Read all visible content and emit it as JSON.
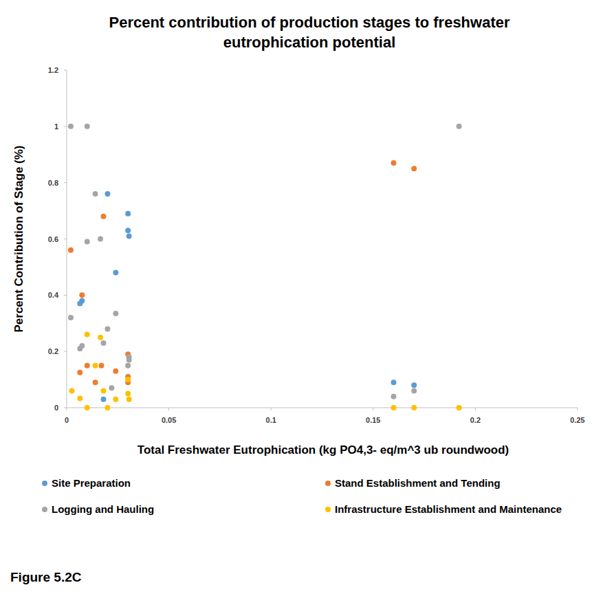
{
  "chart_data": {
    "type": "scatter",
    "title": "Percent contribution of production stages to freshwater eutrophication potential",
    "x_label": "Total Freshwater Eutrophication  (kg PO4,3- eq/m^3 ub roundwood)",
    "y_label": "Percent Contribution  of Stage (%)",
    "annotation": "Figure 5.2C",
    "xlim": [
      0,
      0.25
    ],
    "xticks": [
      0,
      0.05,
      0.1,
      0.15,
      0.2,
      0.25
    ],
    "ylim": [
      0,
      1.2
    ],
    "yticks": [
      0,
      0.2,
      0.4,
      0.6,
      0.8,
      1,
      1.2
    ],
    "grid": false,
    "legend": "bottom",
    "marker": "circle",
    "series": [
      {
        "name": "Site Preparation",
        "color": "#5b9bd5",
        "x": [
          0.02,
          0.03,
          0.03,
          0.0305,
          0.024,
          0.0065,
          0.0075,
          0.018,
          0.16,
          0.17
        ],
        "values": [
          0.76,
          0.69,
          0.63,
          0.61,
          0.48,
          0.37,
          0.38,
          0.03,
          0.09,
          0.08
        ]
      },
      {
        "name": "Stand Establishment and Tending",
        "color": "#ed7d31",
        "x": [
          0.16,
          0.17,
          0.018,
          0.002,
          0.0075,
          0.0065,
          0.01,
          0.017,
          0.014,
          0.024,
          0.03,
          0.03,
          0.03
        ],
        "values": [
          0.87,
          0.85,
          0.68,
          0.56,
          0.4,
          0.125,
          0.15,
          0.15,
          0.09,
          0.13,
          0.19,
          0.11,
          0.09
        ]
      },
      {
        "name": "Logging and Hauling",
        "color": "#a5a5a5",
        "x": [
          0.002,
          0.01,
          0.192,
          0.014,
          0.01,
          0.0165,
          0.002,
          0.024,
          0.02,
          0.0075,
          0.0065,
          0.018,
          0.0305,
          0.0305,
          0.03,
          0.022,
          0.16,
          0.17
        ],
        "values": [
          1,
          1,
          1,
          0.76,
          0.59,
          0.6,
          0.32,
          0.335,
          0.28,
          0.22,
          0.21,
          0.23,
          0.18,
          0.17,
          0.15,
          0.07,
          0.04,
          0.06
        ]
      },
      {
        "name": "Infrastructure Establishment and Maintenance",
        "color": "#ffc000",
        "x": [
          0.0025,
          0.0065,
          0.01,
          0.01,
          0.014,
          0.0165,
          0.018,
          0.02,
          0.024,
          0.03,
          0.03,
          0.0305,
          0.16,
          0.17,
          0.192
        ],
        "values": [
          0.06,
          0.033,
          0.26,
          0,
          0.15,
          0.25,
          0.06,
          0,
          0.03,
          0.1,
          0.05,
          0.03,
          0,
          0,
          0
        ]
      }
    ]
  }
}
